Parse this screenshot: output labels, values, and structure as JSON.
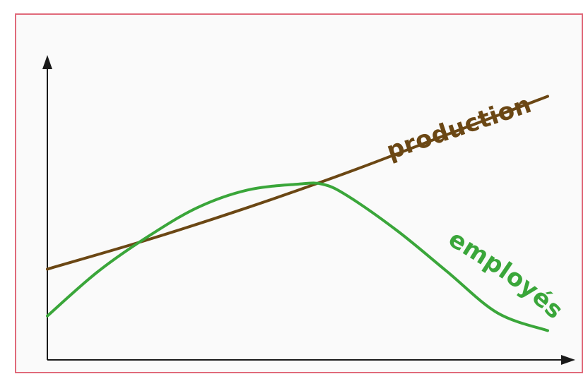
{
  "chart_data": {
    "type": "line",
    "title": "",
    "xlabel": "",
    "ylabel": "",
    "xlim": [
      0,
      100
    ],
    "ylim": [
      0,
      100
    ],
    "grid": false,
    "legend": "inline labels",
    "colors": {
      "frame": "#e06a7a",
      "background": "#fafafa",
      "axis": "#1a1a1a"
    },
    "series": [
      {
        "name": "production",
        "color": "#6b4714",
        "x": [
          0,
          20,
          40,
          60,
          80,
          100
        ],
        "y": [
          31,
          41,
          52,
          64,
          77,
          90
        ]
      },
      {
        "name": "employés",
        "color": "#3aa63a",
        "x": [
          0,
          10,
          20,
          30,
          40,
          50,
          55,
          60,
          70,
          80,
          90,
          100
        ],
        "y": [
          15,
          30,
          42,
          52,
          58,
          60,
          60,
          56,
          44,
          30,
          16,
          10
        ]
      }
    ]
  }
}
